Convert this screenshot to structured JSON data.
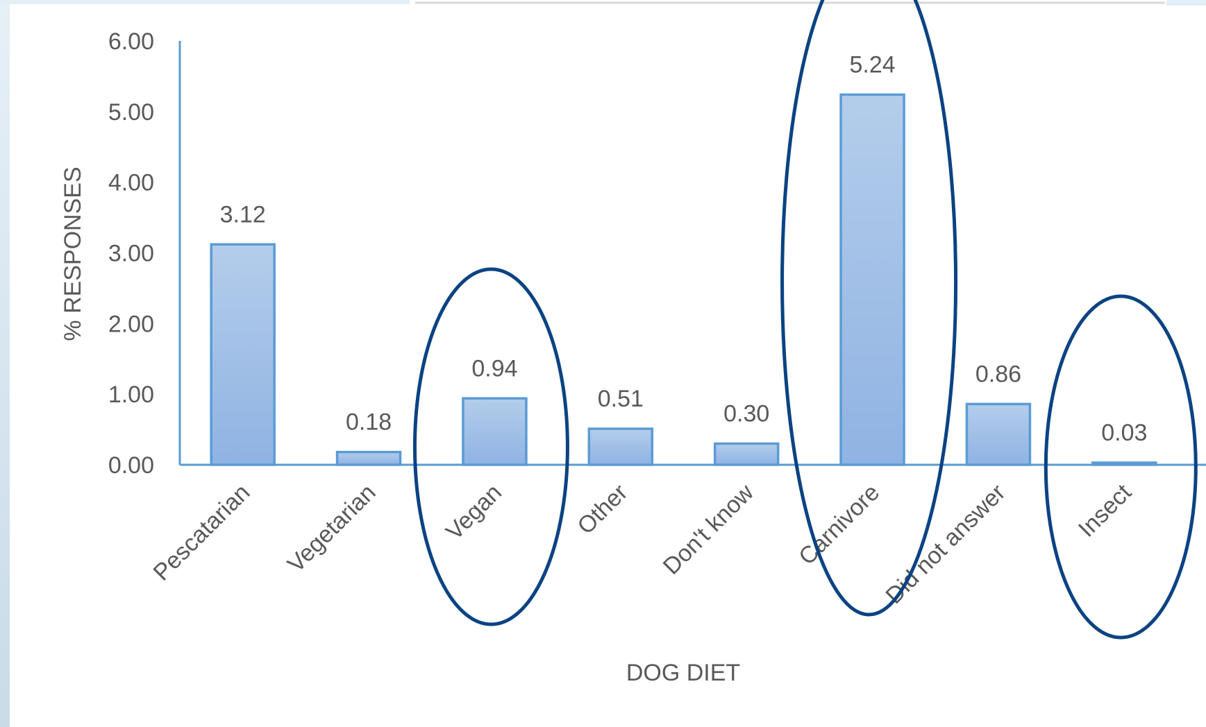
{
  "chart_data": {
    "type": "bar",
    "categories": [
      "Pescatarian",
      "Vegetarian",
      "Vegan",
      "Other",
      "Don't know",
      "Carnivore",
      "Did not answer",
      "Insect"
    ],
    "values": [
      3.12,
      0.18,
      0.94,
      0.51,
      0.3,
      5.24,
      0.86,
      0.03
    ],
    "data_labels": [
      "3.12",
      "0.18",
      "0.94",
      "0.51",
      "0.30",
      "5.24",
      "0.86",
      "0.03"
    ],
    "yticks": [
      "0.00",
      "1.00",
      "2.00",
      "3.00",
      "4.00",
      "5.00",
      "6.00"
    ],
    "xlabel": "DOG DIET",
    "ylabel": "% RESPONSES",
    "ylim": [
      0,
      6
    ],
    "grid": false,
    "highlighted_categories": [
      "Vegan",
      "Carnivore",
      "Insect"
    ],
    "colors": {
      "bar_fill_top": "#b4cdeb",
      "bar_fill_bottom": "#8fb3e3",
      "bar_stroke": "#5b9bd5",
      "axis": "#5b9bd5",
      "highlight_ellipse": "#0b4383",
      "text": "#595959",
      "background": "#ffffff",
      "left_frame": "#d6e6f1"
    }
  }
}
